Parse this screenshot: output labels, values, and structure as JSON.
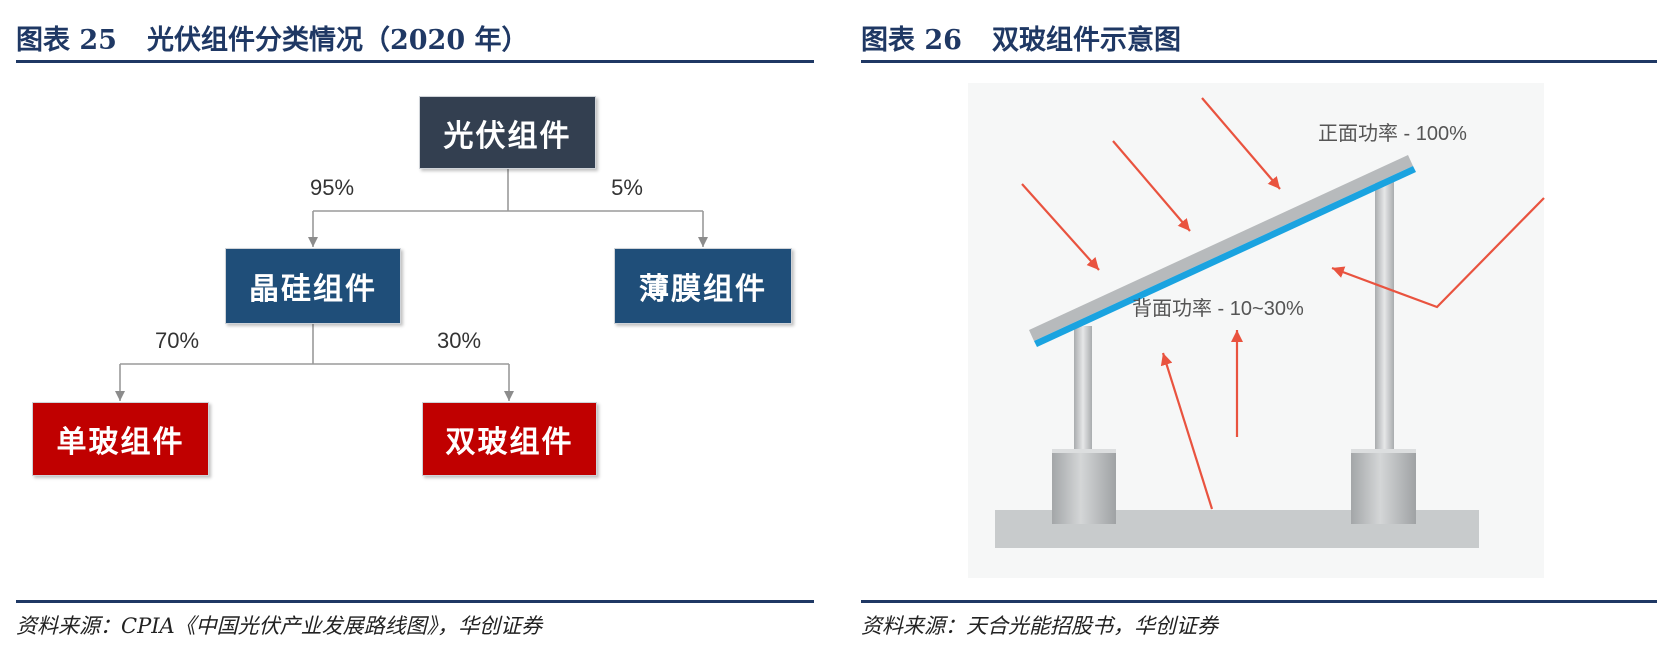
{
  "left_figure": {
    "figure_no": "图表 25",
    "title": "光伏组件分类情况（2020 年）",
    "root": "光伏组件",
    "level1": [
      {
        "label": "晶硅组件",
        "share": "95%"
      },
      {
        "label": "薄膜组件",
        "share": "5%"
      }
    ],
    "level2": [
      {
        "label": "单玻组件",
        "share": "70%"
      },
      {
        "label": "双玻组件",
        "share": "30%"
      }
    ],
    "source": "资料来源：CPIA《中国光伏产业发展路线图》，华创证券"
  },
  "right_figure": {
    "figure_no": "图表 26",
    "title": "双玻组件示意图",
    "front_label": "正面功率 - 100%",
    "back_label": "背面功率 - 10~30%",
    "source": "资料来源：天合光能招股书，华创证券"
  },
  "colors": {
    "title": "#1f3864",
    "rule": "#1f3864",
    "root_box": "#333f50",
    "level1_box": "#1f4e79",
    "level2_box": "#c00000",
    "front_glass": "#1aa3e0",
    "light_arrow": "#e9533f"
  }
}
